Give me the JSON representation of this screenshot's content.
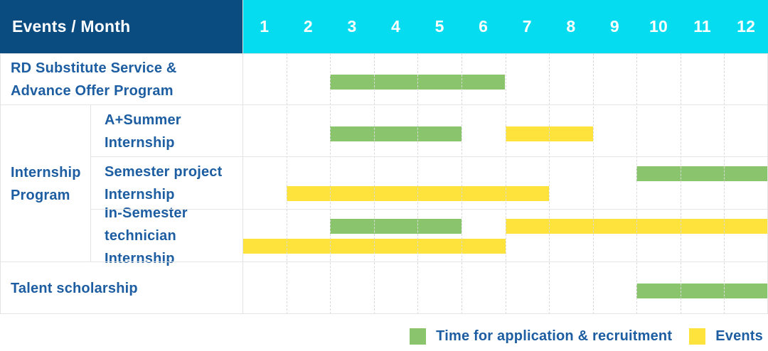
{
  "colors": {
    "header_bg": "#0a4b80",
    "months_bg": "#06dcf0",
    "label_text": "#1d5da1",
    "bar_green": "#8ac46d",
    "bar_yellow": "#ffe33d"
  },
  "chart_data": {
    "type": "bar",
    "subtype": "gantt-schedule-table",
    "title": "Events / Month",
    "xlabel": "Month",
    "x_range": [
      1,
      12
    ],
    "months": [
      "1",
      "2",
      "3",
      "4",
      "5",
      "6",
      "7",
      "8",
      "9",
      "10",
      "11",
      "12"
    ],
    "grid": "dashed-vertical",
    "legend_position": "bottom-right",
    "legend": [
      {
        "key": "recruitment",
        "label": "Time for application & recruitment",
        "color": "#8ac46d"
      },
      {
        "key": "event",
        "label": "Events",
        "color": "#ffe33d"
      }
    ],
    "group_label": "Internship\nProgram",
    "rows": [
      {
        "label": "RD Substitute Service &\nAdvance Offer Program",
        "group": "",
        "lanes": 1,
        "bars": [
          {
            "series": "recruitment",
            "start_month": 3,
            "end_month": 6,
            "lane": 0
          }
        ]
      },
      {
        "label": "A+Summer\nInternship",
        "group": "Internship Program",
        "lanes": 1,
        "bars": [
          {
            "series": "recruitment",
            "start_month": 3,
            "end_month": 5,
            "lane": 0
          },
          {
            "series": "event",
            "start_month": 7,
            "end_month": 8,
            "lane": 0
          }
        ]
      },
      {
        "label": "Semester project\nInternship",
        "group": "Internship Program",
        "lanes": 2,
        "bars": [
          {
            "series": "recruitment",
            "start_month": 10,
            "end_month": 12,
            "lane": 0
          },
          {
            "series": "event",
            "start_month": 2,
            "end_month": 7,
            "lane": 1
          }
        ]
      },
      {
        "label": "In-Semester\ntechnician Internship",
        "group": "Internship Program",
        "lanes": 2,
        "bars": [
          {
            "series": "recruitment",
            "start_month": 3,
            "end_month": 5,
            "lane": 0
          },
          {
            "series": "event",
            "start_month": 7,
            "end_month": 12,
            "lane": 0
          },
          {
            "series": "event",
            "start_month": 1,
            "end_month": 6,
            "lane": 1
          }
        ]
      },
      {
        "label": "Talent scholarship",
        "group": "",
        "lanes": 1,
        "bars": [
          {
            "series": "recruitment",
            "start_month": 10,
            "end_month": 12,
            "lane": 0
          }
        ]
      }
    ]
  }
}
